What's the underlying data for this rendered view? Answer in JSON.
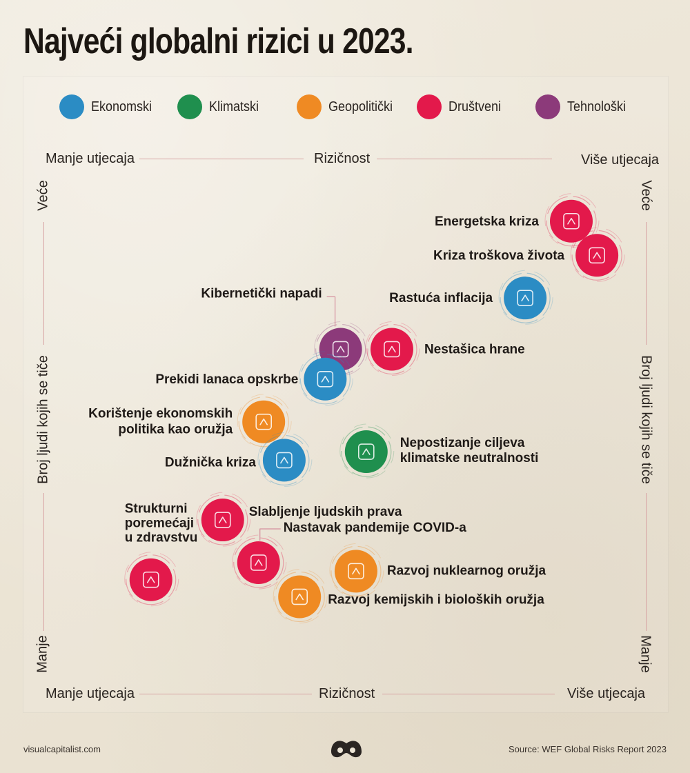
{
  "title": "Najveći globalni rizici u 2023.",
  "legend": [
    {
      "label": "Ekonomski",
      "color": "#2b8cc4"
    },
    {
      "label": "Klimatski",
      "color": "#1f8f4e"
    },
    {
      "label": "Geopolitički",
      "color": "#ef8a23"
    },
    {
      "label": "Društveni",
      "color": "#e3194b"
    },
    {
      "label": "Tehnološki",
      "color": "#8c3a7a"
    }
  ],
  "axes": {
    "top_left": "Manje utjecaja",
    "top_center": "Rizičnost",
    "top_right": "Više utjecaja",
    "bottom_left": "Manje utjecaja",
    "bottom_center": "Rizičnost",
    "bottom_right": "Više utjecaja",
    "left_top": "Veće",
    "left_center": "Broj ljudi kojih se tiče",
    "left_bottom": "Manje",
    "right_top": "Veće",
    "right_center": "Broj ljudi kojih se tiče",
    "right_bottom": "Manje"
  },
  "chart_data": {
    "type": "scatter",
    "title": "Najveći globalni rizici u 2023.",
    "xlabel": "Rizičnost",
    "ylabel": "Broj ljudi kojih se tiče",
    "xlim": [
      0,
      100
    ],
    "ylim": [
      0,
      100
    ],
    "x_scale_labels": [
      "Manje utjecaja",
      "Više utjecaja"
    ],
    "y_scale_labels": [
      "Manje",
      "Veće"
    ],
    "categories": [
      "Ekonomski",
      "Klimatski",
      "Geopolitički",
      "Društveni",
      "Tehnološki"
    ],
    "points": [
      {
        "label": "Energetska kriza",
        "category": "Društveni",
        "icon": "fuel-barrel-icon",
        "x": 93,
        "y": 96
      },
      {
        "label": "Kriza troškova života",
        "category": "Društveni",
        "icon": "wallet-warning-icon",
        "x": 98,
        "y": 88
      },
      {
        "label": "Rastuća inflacija",
        "category": "Ekonomski",
        "icon": "inflation-coins-icon",
        "x": 84,
        "y": 78
      },
      {
        "label": "Kibernetički napadi",
        "category": "Tehnološki",
        "icon": "cyber-bug-icon",
        "x": 48,
        "y": 66
      },
      {
        "label": "Nestašica hrane",
        "category": "Društveni",
        "icon": "food-shortage-icon",
        "x": 58,
        "y": 66
      },
      {
        "label": "Prekidi lanaca opskrbe",
        "category": "Ekonomski",
        "icon": "basket-cancel-icon",
        "x": 45,
        "y": 59
      },
      {
        "label": "Korištenje ekonomskih politika kao oružja",
        "category": "Geopolitički",
        "icon": "money-bag-icon",
        "x": 33,
        "y": 49
      },
      {
        "label": "Dužnička kriza",
        "category": "Ekonomski",
        "icon": "growth-chart-icon",
        "x": 37,
        "y": 40
      },
      {
        "label": "Nepostizanje ciljeva klimatske neutralnosti",
        "category": "Klimatski",
        "icon": "thermometer-icon",
        "x": 53,
        "y": 42
      },
      {
        "label": "Slabljenje ljudskih prava",
        "category": "Društveni",
        "icon": "human-rights-icon",
        "x": 25,
        "y": 26
      },
      {
        "label": "Nastavak pandemije COVID-a",
        "category": "Društveni",
        "icon": "virus-icon",
        "x": 32,
        "y": 16
      },
      {
        "label": "Razvoj nuklearnog oružja",
        "category": "Geopolitički",
        "icon": "mushroom-cloud-icon",
        "x": 51,
        "y": 14
      },
      {
        "label": "Razvoj kemijskih i bioloških oružja",
        "category": "Geopolitički",
        "icon": "biohazard-icon",
        "x": 40,
        "y": 8
      },
      {
        "label": "Strukturni poremećaji u zdravstvu",
        "category": "Društveni",
        "icon": "health-warning-icon",
        "x": 11,
        "y": 12
      }
    ]
  },
  "footer": {
    "left": "visualcapitalist.com",
    "right": "Source: WEF Global Risks Report 2023",
    "logo": "visual-capitalist-logo-icon"
  }
}
